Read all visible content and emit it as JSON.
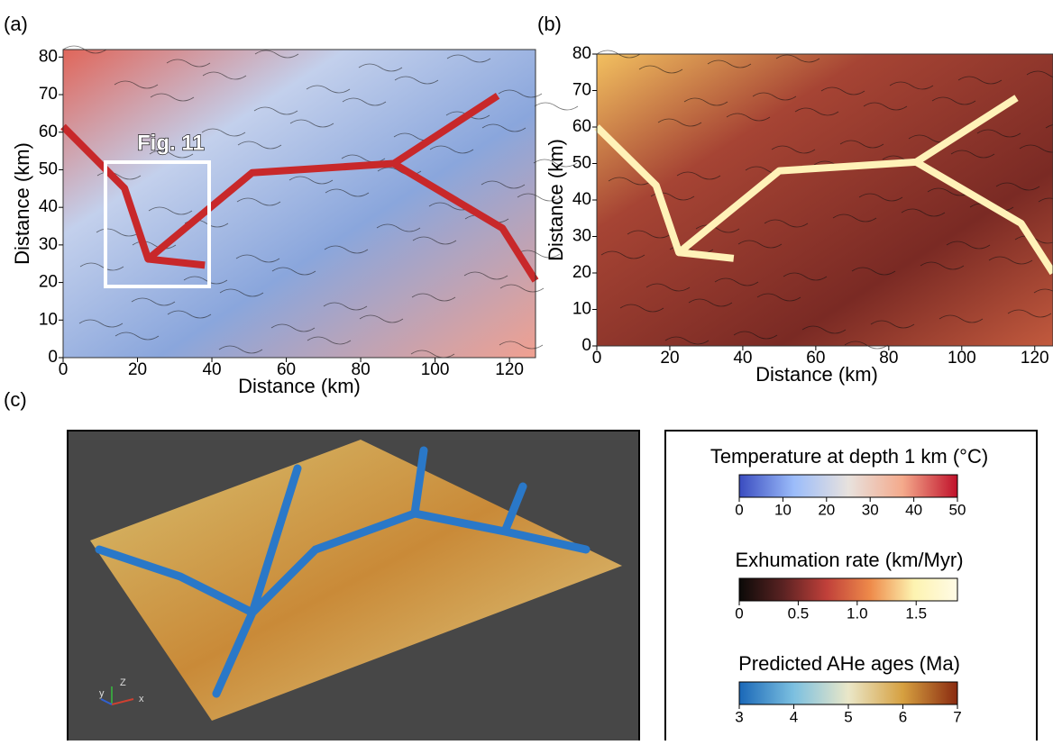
{
  "panels": [
    {
      "label": "(a)",
      "xlabel": "Distance (km)",
      "ylabel": "Distance (km)",
      "xlim": [
        0,
        127
      ],
      "ylim": [
        0,
        82
      ],
      "xticks": [
        0,
        20,
        40,
        60,
        80,
        100,
        120
      ],
      "yticks": [
        0,
        10,
        20,
        30,
        40,
        50,
        60,
        70,
        80
      ],
      "inset_label": "Fig. 11"
    },
    {
      "label": "(b)",
      "xlabel": "Distance (km)",
      "ylabel": "Distance (km)",
      "xlim": [
        0,
        125
      ],
      "ylim": [
        0,
        80
      ],
      "xticks": [
        0,
        20,
        40,
        60,
        80,
        100,
        120
      ],
      "yticks": [
        0,
        10,
        20,
        30,
        40,
        50,
        60,
        70,
        80
      ]
    },
    {
      "label": "(c)",
      "axis_x": "x",
      "axis_y": "y",
      "axis_z": "Z"
    }
  ],
  "colorbars": [
    {
      "title": "Temperature at depth 1 km (°C)",
      "lim": [
        0,
        50
      ],
      "ticks": [
        0,
        10,
        20,
        30,
        40,
        50
      ],
      "colors": [
        "#3a4cc0",
        "#9bbcfa",
        "#e8e2de",
        "#f4a98b",
        "#c0102a"
      ]
    },
    {
      "title": "Exhumation rate (km/Myr)",
      "lim": [
        0,
        1.85
      ],
      "ticks": [
        0,
        0.5,
        {
          "value": 1,
          "label": "1.0"
        },
        1.5
      ],
      "colors": [
        "#0b0a08",
        "#5a2222",
        "#c0403a",
        "#ee8a4a",
        "#fdf3b0",
        "#fffbe6"
      ]
    },
    {
      "title": "Predicted AHe ages (Ma)",
      "lim": [
        3,
        7
      ],
      "ticks": [
        3,
        4,
        5,
        6,
        7
      ],
      "colors": [
        "#1a68b8",
        "#7cc0e0",
        "#eae7c8",
        "#d6a040",
        "#8a2a10"
      ]
    }
  ]
}
